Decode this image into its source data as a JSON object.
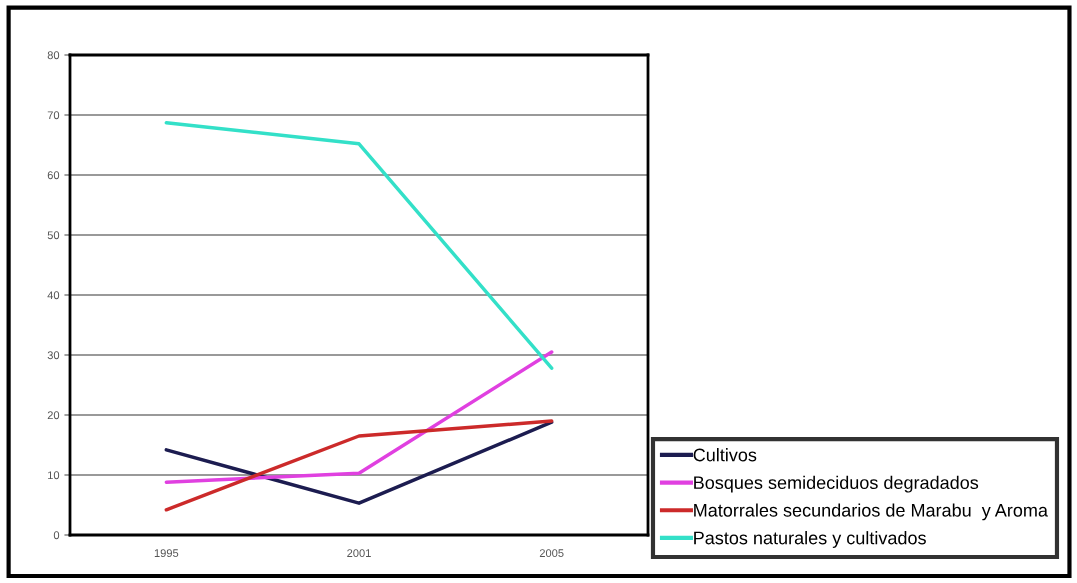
{
  "chart_data": {
    "type": "line",
    "categories": [
      "1995",
      "2001",
      "2005"
    ],
    "series": [
      {
        "name": "Cultivos",
        "color": "#1c1c50",
        "values": [
          14.2,
          5.3,
          18.8
        ]
      },
      {
        "name": "Bosques semideciduos degradados",
        "color": "#e040e0",
        "values": [
          8.8,
          10.3,
          30.5
        ]
      },
      {
        "name": "Matorrales secundarios de Marabu  y Aroma",
        "color": "#cc2a2a",
        "values": [
          4.2,
          16.5,
          19.0
        ]
      },
      {
        "name": "Pastos naturales y cultivados",
        "color": "#33e0c8",
        "values": [
          68.7,
          65.2,
          27.8
        ]
      }
    ],
    "ylim": [
      0,
      80
    ],
    "yticks": [
      0,
      10,
      20,
      30,
      40,
      50,
      60,
      70,
      80
    ],
    "grid": "y",
    "legend": "bottom right",
    "marker": "none",
    "line_style": "solid"
  }
}
